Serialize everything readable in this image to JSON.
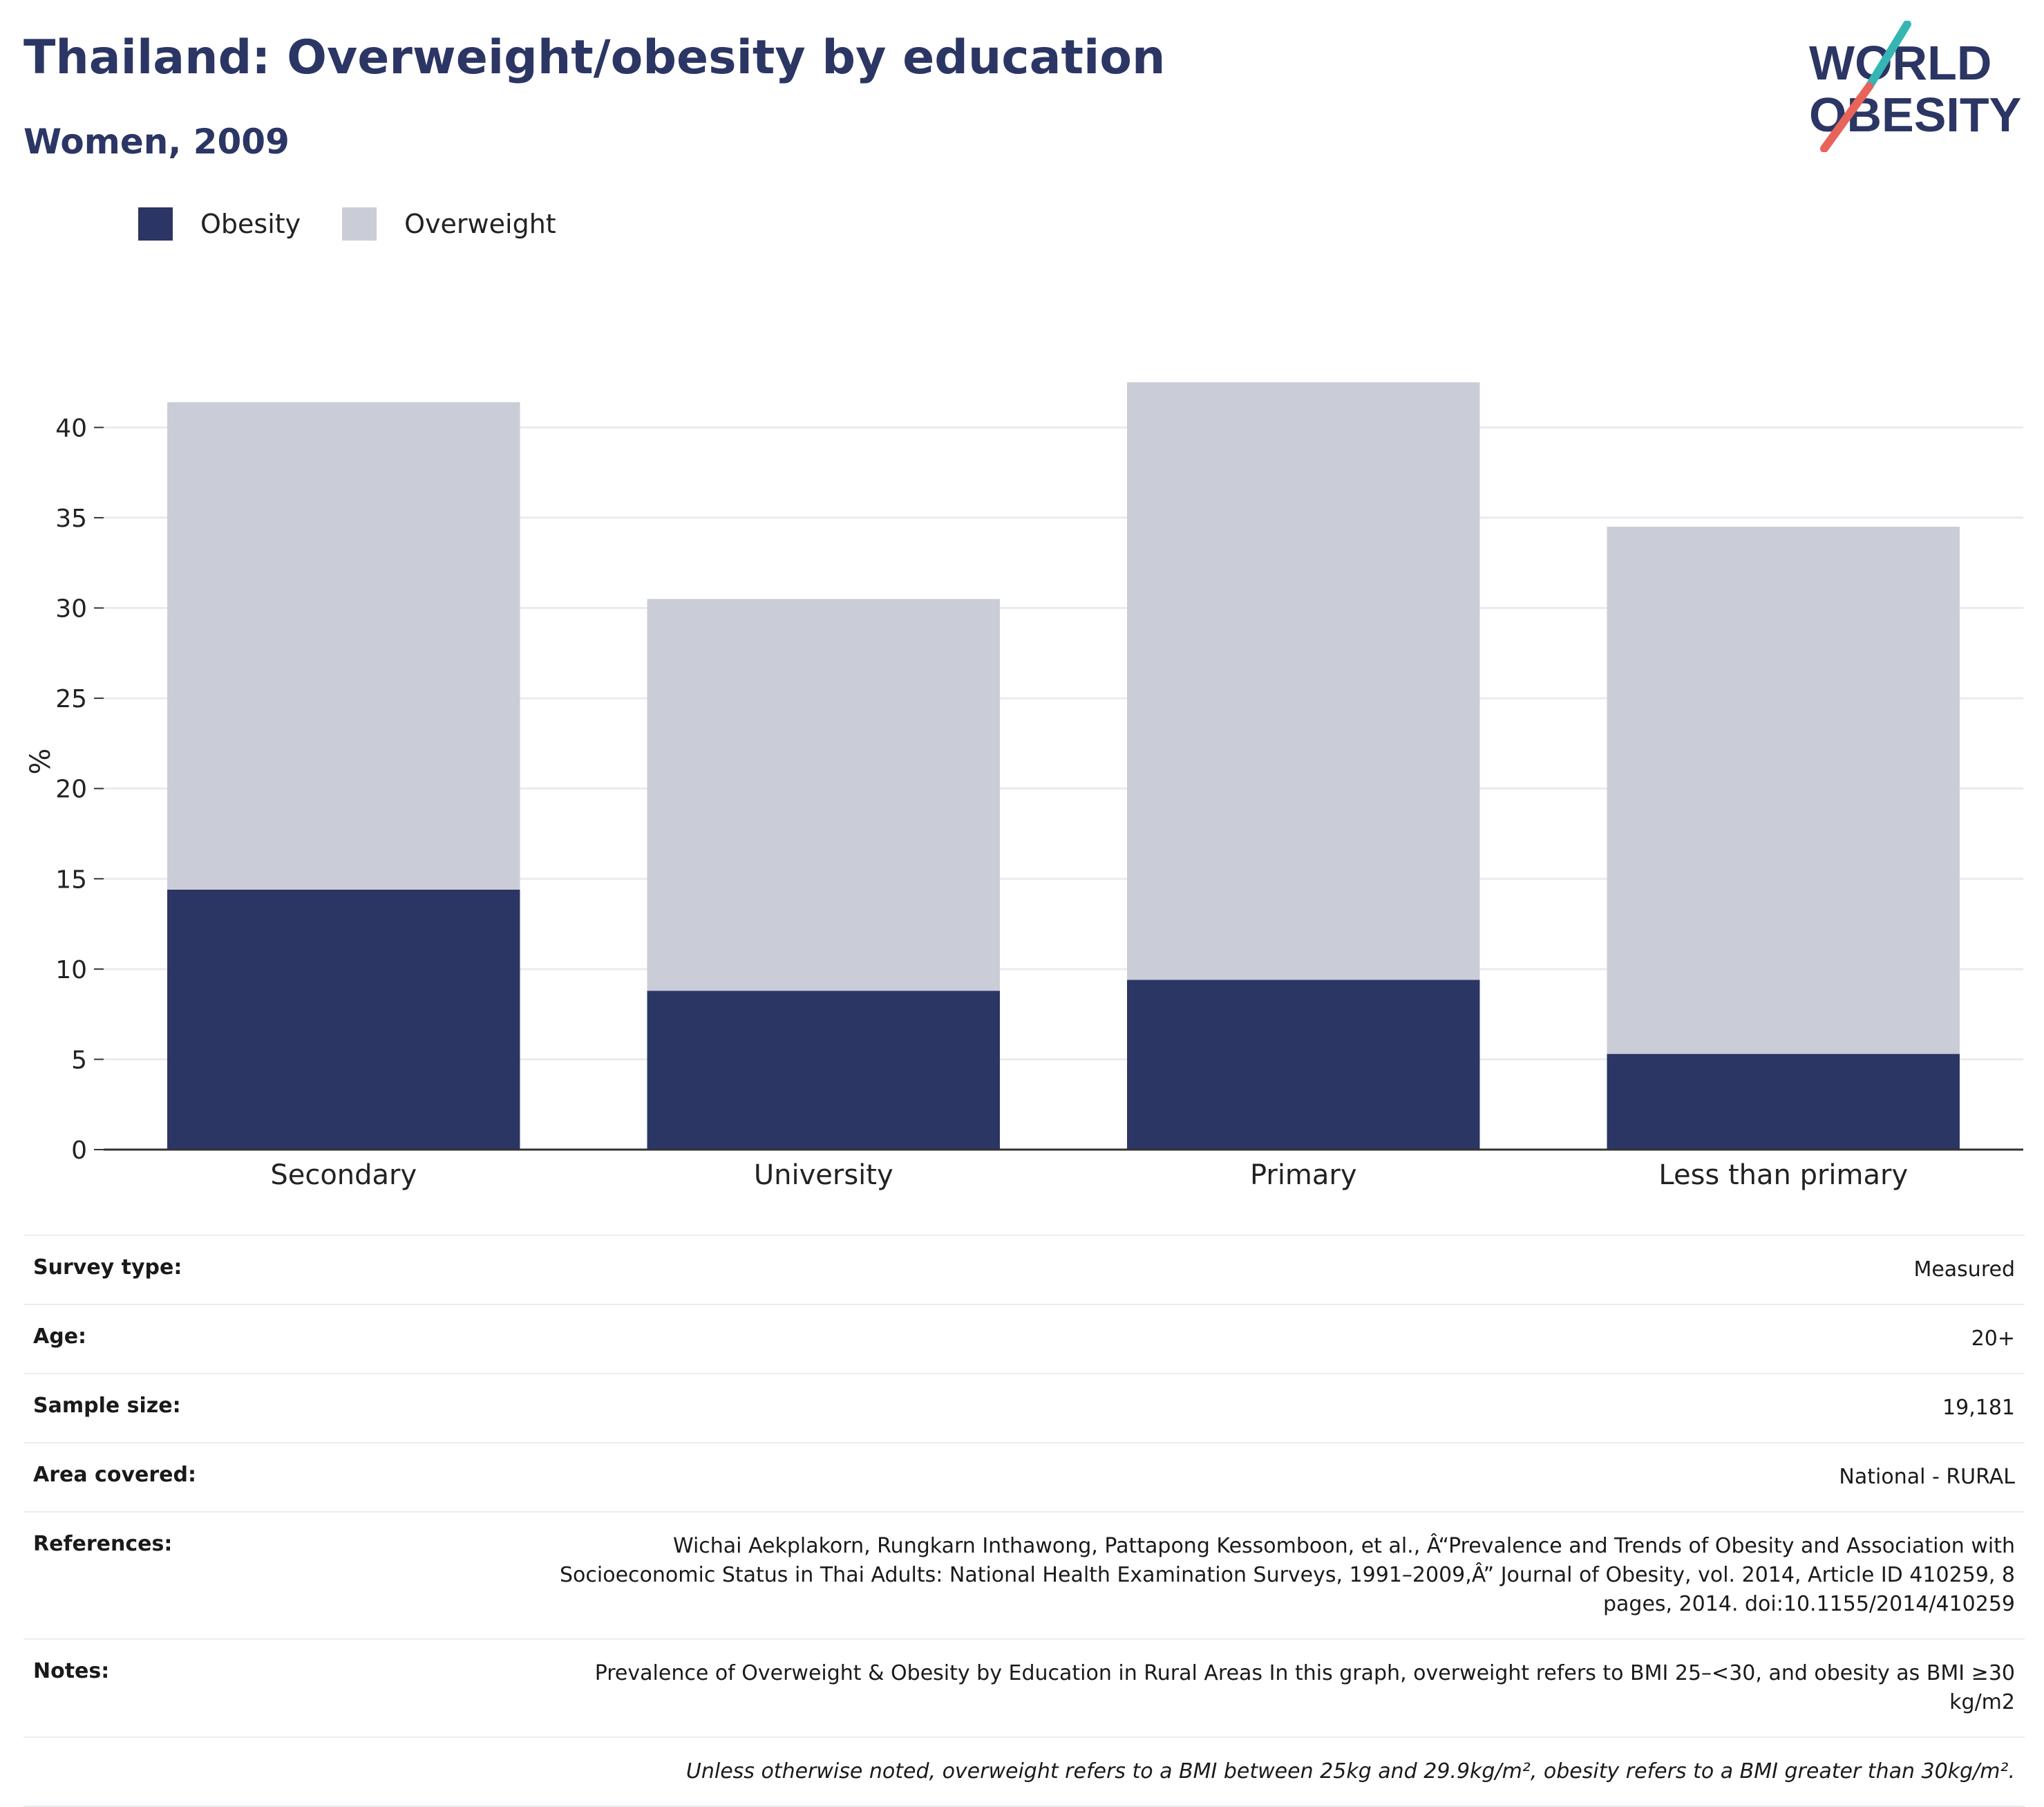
{
  "header": {
    "title": "Thailand: Overweight/obesity by education",
    "subtitle": "Women, 2009"
  },
  "logo": {
    "line1": "WORLD",
    "line2": "OBESITY",
    "slash_colors": [
      "#35b6b4",
      "#e8645a"
    ],
    "text_color": "#2b3664"
  },
  "colors": {
    "obesity": "#2b3664",
    "overweight": "#cacdd8",
    "grid": "#eaeaf0",
    "axis": "#333333"
  },
  "legend": [
    {
      "label": "Obesity",
      "color": "#2b3664"
    },
    {
      "label": "Overweight",
      "color": "#cacdd8"
    }
  ],
  "chart_data": {
    "type": "bar",
    "stacked": true,
    "categories": [
      "Secondary",
      "University",
      "Primary",
      "Less than primary"
    ],
    "series": [
      {
        "name": "Obesity",
        "values": [
          14.4,
          8.8,
          9.4,
          5.3
        ]
      },
      {
        "name": "Overweight",
        "values": [
          27.0,
          21.7,
          33.1,
          29.2
        ]
      }
    ],
    "ylabel": "%",
    "ylim": [
      0,
      43
    ],
    "yticks": [
      0,
      5,
      10,
      15,
      20,
      25,
      30,
      35,
      40
    ],
    "grid": true,
    "legend_position": "top-left"
  },
  "info": {
    "rows": [
      {
        "label": "Survey type:",
        "value": "Measured"
      },
      {
        "label": "Age:",
        "value": "20+"
      },
      {
        "label": "Sample size:",
        "value": "19,181"
      },
      {
        "label": "Area covered:",
        "value": "National - RURAL"
      },
      {
        "label": "References:",
        "value": "Wichai Aekplakorn, Rungkarn Inthawong, Pattapong Kessomboon, et al., Â“Prevalence and Trends of Obesity and Association with Socioeconomic Status in Thai Adults: National Health Examination Surveys, 1991–2009,Â” Journal of Obesity, vol. 2014, Article ID 410259, 8 pages, 2014. doi:10.1155/2014/410259"
      },
      {
        "label": "Notes:",
        "value": "Prevalence of Overweight & Obesity by Education in Rural Areas In this graph, overweight refers to BMI 25–<30, and obesity as BMI ≥30 kg/m2"
      }
    ],
    "footnote": "Unless otherwise noted, overweight refers to a BMI between 25kg and 29.9kg/m², obesity refers to a BMI greater than 30kg/m²."
  }
}
